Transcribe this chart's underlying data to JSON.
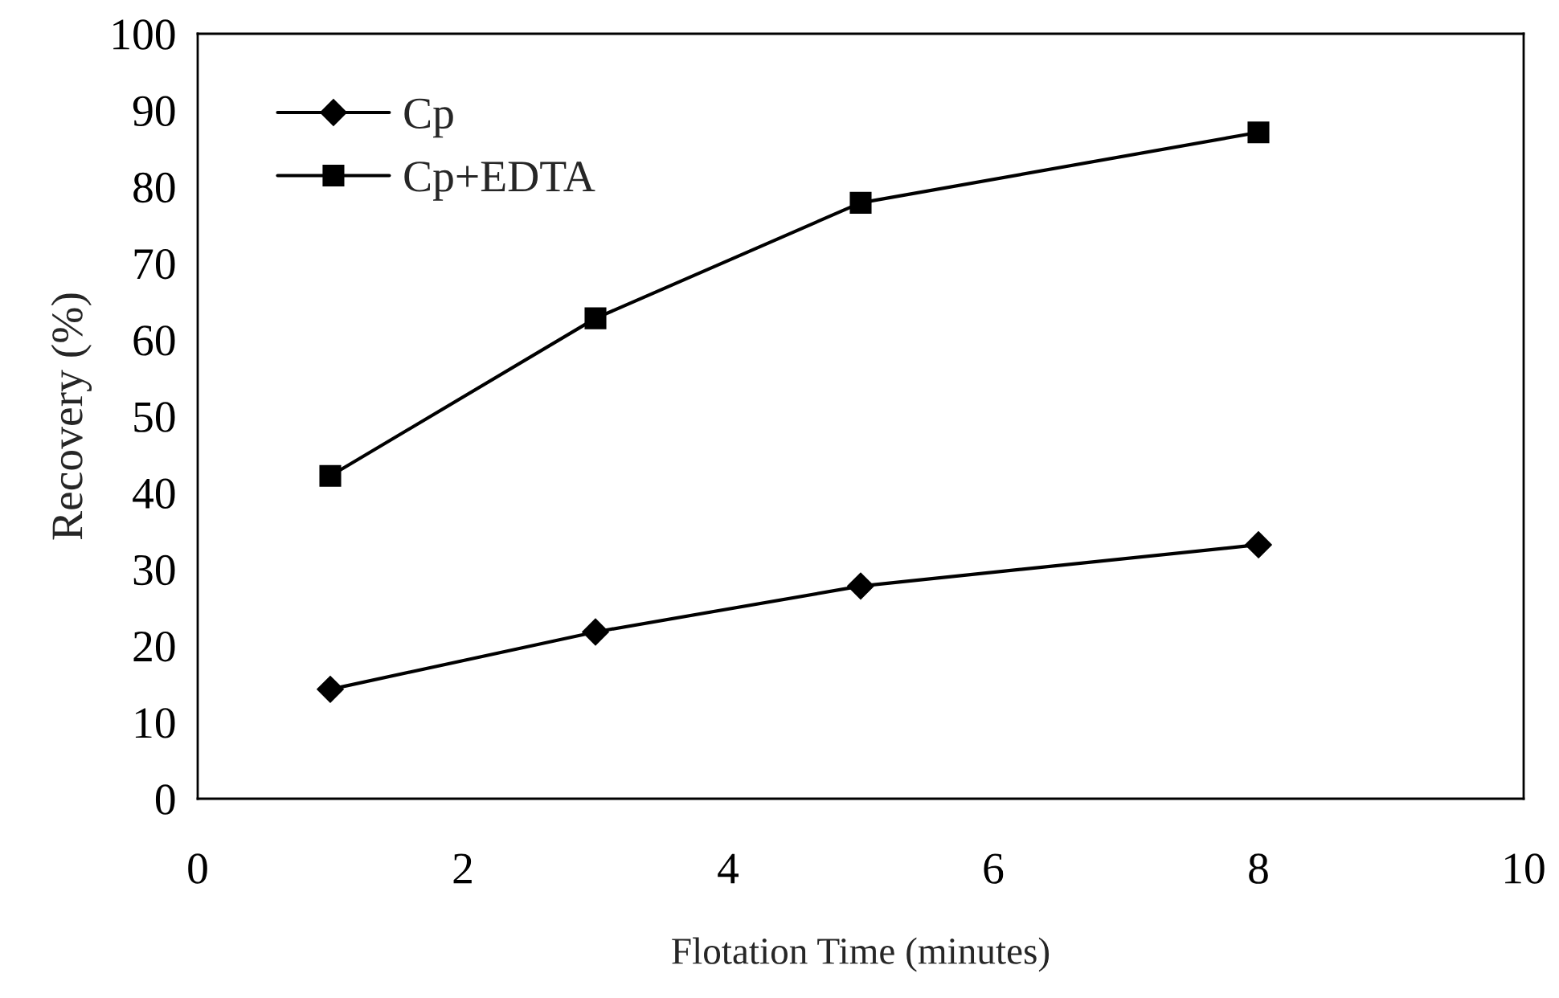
{
  "chart_data": {
    "type": "line",
    "xlabel": "Flotation Time (minutes)",
    "ylabel": "Recovery (%)",
    "x": [
      1,
      3,
      5,
      8
    ],
    "series": [
      {
        "name": "Cp",
        "color": "#000000",
        "marker": "diamond",
        "values": [
          14.3,
          21.8,
          27.8,
          33.2
        ]
      },
      {
        "name": "Cp+EDTA",
        "color": "#000000",
        "marker": "square",
        "values": [
          42.2,
          62.8,
          77.9,
          87.1
        ]
      }
    ],
    "xlim": [
      0,
      10
    ],
    "xticks": [
      0,
      2,
      4,
      6,
      8,
      10
    ],
    "ylim": [
      0,
      100
    ],
    "yticks": [
      0,
      10,
      20,
      30,
      40,
      50,
      60,
      70,
      80,
      90,
      100
    ],
    "grid": false,
    "legend": "top left",
    "line_style": "solid"
  }
}
